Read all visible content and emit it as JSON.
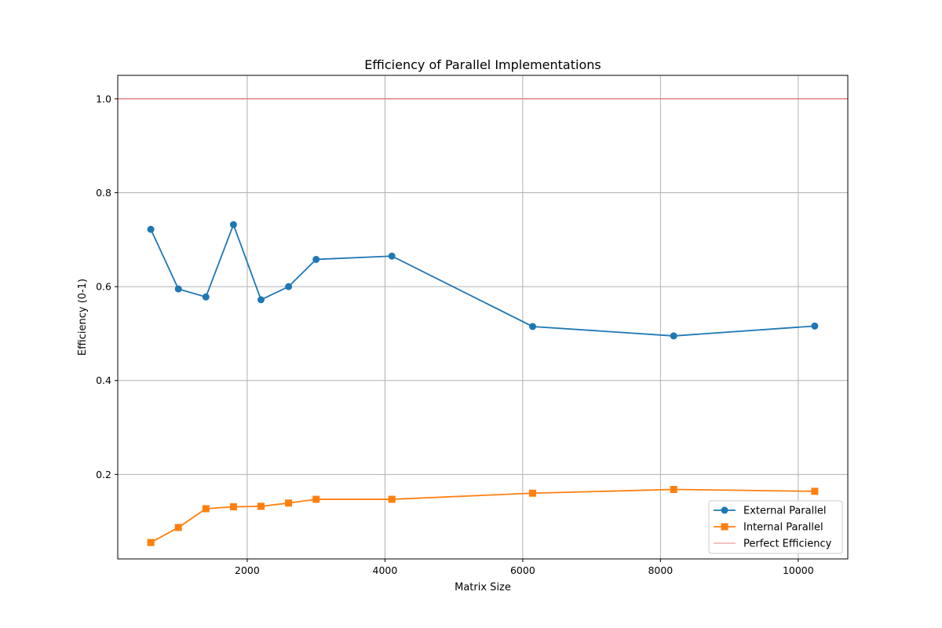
{
  "chart_data": {
    "type": "line",
    "title": "Efficiency of Parallel Implementations",
    "xlabel": "Matrix Size",
    "ylabel": "Efficiency (0-1)",
    "xlim": [
      120,
      10720
    ],
    "ylim": [
      0.02,
      1.05
    ],
    "x_ticks": [
      2000,
      4000,
      6000,
      8000,
      10000
    ],
    "y_ticks": [
      0.2,
      0.4,
      0.6,
      0.8,
      1.0
    ],
    "y_tick_labels": [
      "0.2",
      "0.4",
      "0.6",
      "0.8",
      "1.0"
    ],
    "grid": true,
    "legend_position": "lower-right",
    "x": [
      600,
      1000,
      1400,
      1800,
      2200,
      2600,
      3000,
      4100,
      6144,
      8192,
      10240
    ],
    "series": [
      {
        "name": "External Parallel",
        "color": "#1f77b4",
        "marker": "circle",
        "values": [
          0.722,
          0.595,
          0.578,
          0.732,
          0.572,
          0.6,
          0.658,
          0.665,
          0.515,
          0.495,
          0.516
        ]
      },
      {
        "name": "Internal Parallel",
        "color": "#ff7f0e",
        "marker": "square",
        "values": [
          0.055,
          0.087,
          0.127,
          0.131,
          0.132,
          0.139,
          0.147,
          0.147,
          0.16,
          0.168,
          0.164
        ]
      }
    ],
    "reference_line": {
      "name": "Perfect Efficiency",
      "y": 1.0,
      "color": "#e37c7c"
    }
  }
}
